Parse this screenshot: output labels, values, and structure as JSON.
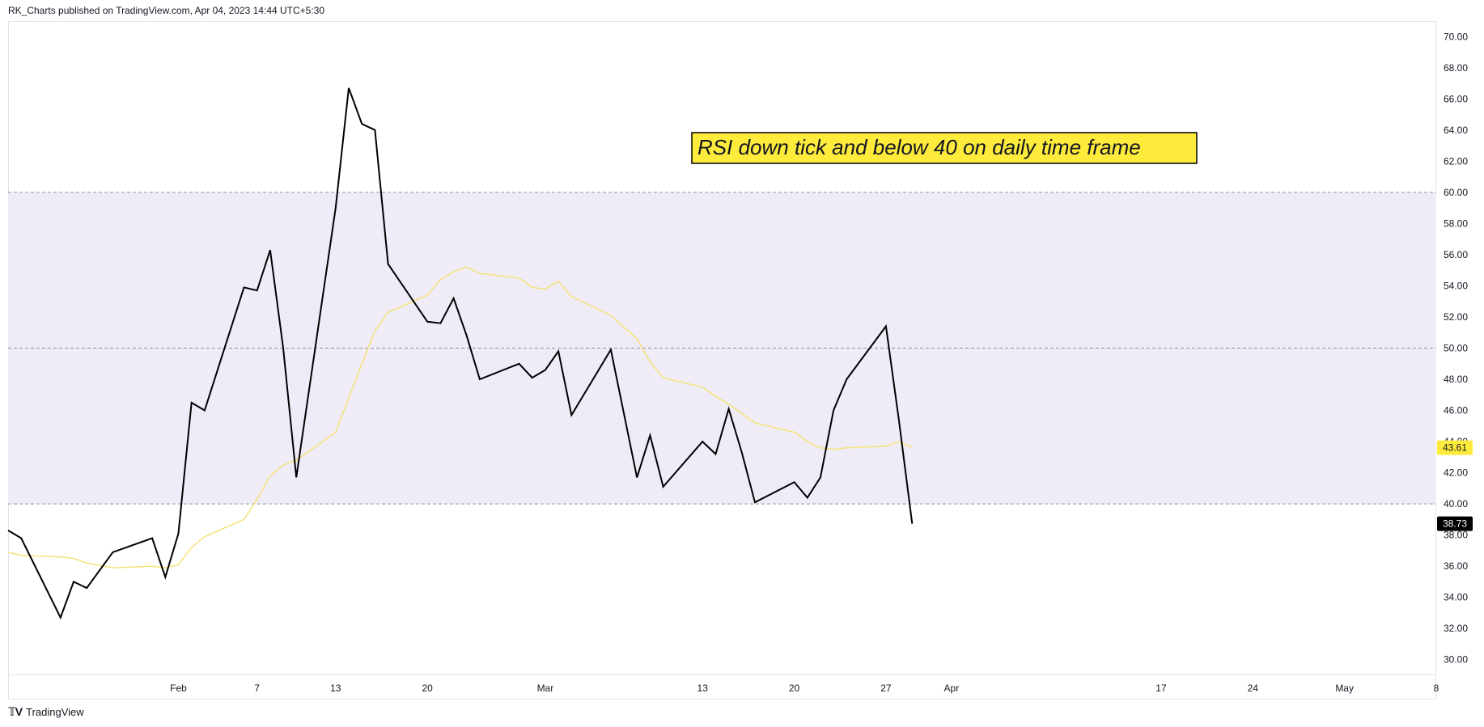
{
  "header": {
    "publisher_text": "RK_Charts published on TradingView.com, Apr 04, 2023 14:44 UTC+5:30"
  },
  "footer": {
    "brand_label": "TradingView",
    "brand_logo_icon": "tradingview-logo-icon"
  },
  "colors": {
    "rsi_line": "#000000",
    "ma_line": "#f5e27a",
    "band_fill": "#efecf7",
    "guide_dash": "#787b86",
    "badge_ma_bg": "#ffeb3b",
    "badge_rsi_bg": "#000000",
    "annotation_bg": "#ffeb3b"
  },
  "chart_data": {
    "type": "line",
    "ylim": [
      29,
      71
    ],
    "y_ticks": [
      "30.00",
      "32.00",
      "34.00",
      "36.00",
      "38.00",
      "40.00",
      "42.00",
      "44.00",
      "46.00",
      "48.00",
      "50.00",
      "52.00",
      "54.00",
      "56.00",
      "58.00",
      "60.00",
      "62.00",
      "64.00",
      "66.00",
      "68.00",
      "70.00"
    ],
    "x_start": "2023-01-19",
    "x_end": "2023-05-08",
    "x_ticks": [
      {
        "date": "2023-02-01",
        "label": "Feb"
      },
      {
        "date": "2023-02-07",
        "label": "7"
      },
      {
        "date": "2023-02-13",
        "label": "13"
      },
      {
        "date": "2023-02-20",
        "label": "20"
      },
      {
        "date": "2023-03-01",
        "label": "Mar"
      },
      {
        "date": "2023-03-13",
        "label": "13"
      },
      {
        "date": "2023-03-20",
        "label": "20"
      },
      {
        "date": "2023-03-27",
        "label": "27"
      },
      {
        "date": "2023-04-01",
        "label": "Apr"
      },
      {
        "date": "2023-04-17",
        "label": "17"
      },
      {
        "date": "2023-04-24",
        "label": "24"
      },
      {
        "date": "2023-05-01",
        "label": "May"
      },
      {
        "date": "2023-05-08",
        "label": "8"
      }
    ],
    "band": {
      "lower": 40,
      "middle": 50,
      "upper": 60
    },
    "annotation": {
      "text": "RSI down tick and below 40 on daily time frame"
    },
    "badges": [
      {
        "label": "43.61",
        "value": 43.61,
        "series": "ma"
      },
      {
        "label": "38.73",
        "value": 38.73,
        "series": "rsi"
      }
    ],
    "series": [
      {
        "key": "rsi",
        "points": [
          {
            "date": "2023-01-19",
            "value": 38.3
          },
          {
            "date": "2023-01-20",
            "value": 37.8
          },
          {
            "date": "2023-01-23",
            "value": 32.7
          },
          {
            "date": "2023-01-24",
            "value": 35.0
          },
          {
            "date": "2023-01-25",
            "value": 34.6
          },
          {
            "date": "2023-01-27",
            "value": 36.9
          },
          {
            "date": "2023-01-30",
            "value": 37.8
          },
          {
            "date": "2023-01-31",
            "value": 35.3
          },
          {
            "date": "2023-02-01",
            "value": 38.1
          },
          {
            "date": "2023-02-02",
            "value": 46.5
          },
          {
            "date": "2023-02-03",
            "value": 46.0
          },
          {
            "date": "2023-02-06",
            "value": 53.9
          },
          {
            "date": "2023-02-07",
            "value": 53.7
          },
          {
            "date": "2023-02-08",
            "value": 56.3
          },
          {
            "date": "2023-02-09",
            "value": 50.0
          },
          {
            "date": "2023-02-10",
            "value": 41.7
          },
          {
            "date": "2023-02-13",
            "value": 59.0
          },
          {
            "date": "2023-02-14",
            "value": 66.7
          },
          {
            "date": "2023-02-15",
            "value": 64.4
          },
          {
            "date": "2023-02-16",
            "value": 64.0
          },
          {
            "date": "2023-02-17",
            "value": 55.4
          },
          {
            "date": "2023-02-20",
            "value": 51.7
          },
          {
            "date": "2023-02-21",
            "value": 51.6
          },
          {
            "date": "2023-02-22",
            "value": 53.2
          },
          {
            "date": "2023-02-23",
            "value": 50.8
          },
          {
            "date": "2023-02-24",
            "value": 48.0
          },
          {
            "date": "2023-02-27",
            "value": 49.0
          },
          {
            "date": "2023-02-28",
            "value": 48.1
          },
          {
            "date": "2023-03-01",
            "value": 48.6
          },
          {
            "date": "2023-03-02",
            "value": 49.8
          },
          {
            "date": "2023-03-03",
            "value": 45.7
          },
          {
            "date": "2023-03-06",
            "value": 49.9
          },
          {
            "date": "2023-03-08",
            "value": 41.7
          },
          {
            "date": "2023-03-09",
            "value": 44.4
          },
          {
            "date": "2023-03-10",
            "value": 41.1
          },
          {
            "date": "2023-03-13",
            "value": 44.0
          },
          {
            "date": "2023-03-14",
            "value": 43.2
          },
          {
            "date": "2023-03-15",
            "value": 46.1
          },
          {
            "date": "2023-03-16",
            "value": 43.3
          },
          {
            "date": "2023-03-17",
            "value": 40.1
          },
          {
            "date": "2023-03-20",
            "value": 41.4
          },
          {
            "date": "2023-03-21",
            "value": 40.4
          },
          {
            "date": "2023-03-22",
            "value": 41.7
          },
          {
            "date": "2023-03-23",
            "value": 46.0
          },
          {
            "date": "2023-03-24",
            "value": 48.0
          },
          {
            "date": "2023-03-27",
            "value": 51.4
          },
          {
            "date": "2023-03-28",
            "value": 45.3
          },
          {
            "date": "2023-03-29",
            "value": 38.73
          }
        ]
      },
      {
        "key": "ma",
        "points": [
          {
            "date": "2023-01-19",
            "value": 36.9
          },
          {
            "date": "2023-01-20",
            "value": 36.7
          },
          {
            "date": "2023-01-23",
            "value": 36.6
          },
          {
            "date": "2023-01-24",
            "value": 36.5
          },
          {
            "date": "2023-01-25",
            "value": 36.2
          },
          {
            "date": "2023-01-27",
            "value": 35.9
          },
          {
            "date": "2023-01-30",
            "value": 36.0
          },
          {
            "date": "2023-01-31",
            "value": 35.9
          },
          {
            "date": "2023-02-01",
            "value": 36.1
          },
          {
            "date": "2023-02-02",
            "value": 37.2
          },
          {
            "date": "2023-02-03",
            "value": 37.9
          },
          {
            "date": "2023-02-06",
            "value": 39.0
          },
          {
            "date": "2023-02-07",
            "value": 40.3
          },
          {
            "date": "2023-02-08",
            "value": 41.8
          },
          {
            "date": "2023-02-09",
            "value": 42.5
          },
          {
            "date": "2023-02-10",
            "value": 42.8
          },
          {
            "date": "2023-02-13",
            "value": 44.6
          },
          {
            "date": "2023-02-14",
            "value": 46.8
          },
          {
            "date": "2023-02-15",
            "value": 49.0
          },
          {
            "date": "2023-02-16",
            "value": 51.1
          },
          {
            "date": "2023-02-17",
            "value": 52.3
          },
          {
            "date": "2023-02-20",
            "value": 53.4
          },
          {
            "date": "2023-02-21",
            "value": 54.4
          },
          {
            "date": "2023-02-22",
            "value": 54.9
          },
          {
            "date": "2023-02-23",
            "value": 55.2
          },
          {
            "date": "2023-02-24",
            "value": 54.8
          },
          {
            "date": "2023-02-27",
            "value": 54.5
          },
          {
            "date": "2023-02-28",
            "value": 53.9
          },
          {
            "date": "2023-03-01",
            "value": 53.8
          },
          {
            "date": "2023-03-02",
            "value": 54.3
          },
          {
            "date": "2023-03-03",
            "value": 53.3
          },
          {
            "date": "2023-03-06",
            "value": 52.1
          },
          {
            "date": "2023-03-08",
            "value": 50.6
          },
          {
            "date": "2023-03-09",
            "value": 49.1
          },
          {
            "date": "2023-03-10",
            "value": 48.1
          },
          {
            "date": "2023-03-13",
            "value": 47.5
          },
          {
            "date": "2023-03-14",
            "value": 46.9
          },
          {
            "date": "2023-03-15",
            "value": 46.4
          },
          {
            "date": "2023-03-16",
            "value": 45.8
          },
          {
            "date": "2023-03-17",
            "value": 45.2
          },
          {
            "date": "2023-03-20",
            "value": 44.6
          },
          {
            "date": "2023-03-21",
            "value": 44.0
          },
          {
            "date": "2023-03-22",
            "value": 43.6
          },
          {
            "date": "2023-03-23",
            "value": 43.5
          },
          {
            "date": "2023-03-24",
            "value": 43.6
          },
          {
            "date": "2023-03-27",
            "value": 43.7
          },
          {
            "date": "2023-03-28",
            "value": 44.0
          },
          {
            "date": "2023-03-29",
            "value": 43.61
          }
        ]
      }
    ]
  }
}
